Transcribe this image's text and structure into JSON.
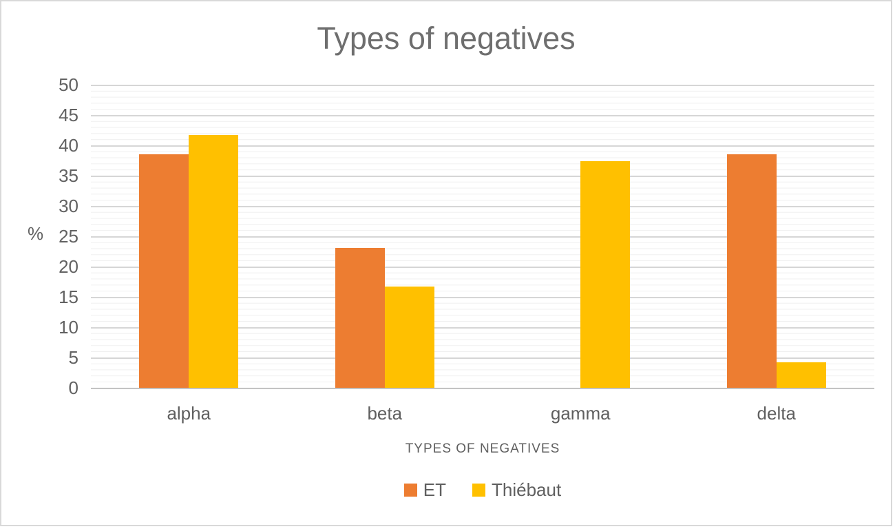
{
  "chart": {
    "title": "Types of negatives",
    "y_axis": {
      "label": "%",
      "ticks": [
        "50",
        "45",
        "40",
        "35",
        "30",
        "25",
        "20",
        "15",
        "10",
        "5",
        "0"
      ]
    },
    "x_axis": {
      "title": "TYPES OF NEGATIVES",
      "categories": [
        "alpha",
        "beta",
        "gamma",
        "delta"
      ]
    },
    "legend": {
      "items": [
        {
          "label": "ET",
          "color": "#ED7D31"
        },
        {
          "label": "Thiébaut",
          "color": "#FFC000"
        }
      ]
    }
  },
  "chart_data": {
    "type": "bar",
    "title": "Types of negatives",
    "xlabel": "TYPES OF NEGATIVES",
    "ylabel": "%",
    "categories": [
      "alpha",
      "beta",
      "gamma",
      "delta"
    ],
    "series": [
      {
        "name": "ET",
        "color": "#ED7D31",
        "values": [
          38.5,
          23.1,
          0,
          38.5
        ]
      },
      {
        "name": "Thiébaut",
        "color": "#FFC000",
        "values": [
          41.7,
          16.7,
          37.4,
          4.2
        ]
      }
    ],
    "ylim": [
      0,
      50
    ],
    "y_tick_step": 5,
    "grid": "horizontal major every 5 (gray) + minor every 1 (light gray)",
    "legend_position": "bottom",
    "colors": {
      "accent_orange": "#ED7D31",
      "accent_gold": "#FFC000",
      "title_gray": "#6E6E6E",
      "axis_text_gray": "#5F5F5F",
      "major_grid": "#D6D6D6",
      "minor_grid": "#EFEFEF"
    }
  }
}
